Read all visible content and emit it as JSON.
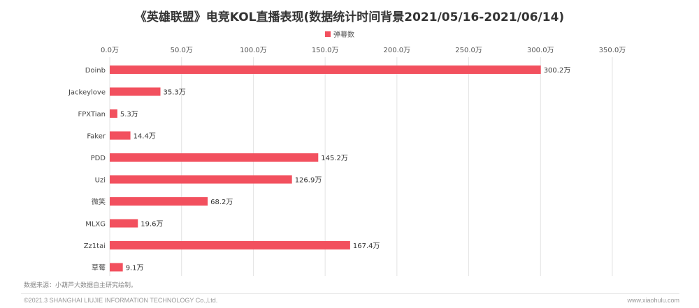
{
  "chart_data": {
    "type": "bar",
    "orientation": "horizontal",
    "title": "《英雄联盟》电竞KOL直播表现(数据统计时间背景2021/05/16-2021/06/14)",
    "legend": [
      "弹幕数"
    ],
    "legend_position": "top-center",
    "categories": [
      "Doinb",
      "Jackeylove",
      "FPXTian",
      "Faker",
      "PDD",
      "Uzi",
      "微笑",
      "MLXG",
      "Zz1tai",
      "草莓"
    ],
    "series": [
      {
        "name": "弹幕数",
        "values": [
          300.2,
          35.3,
          5.3,
          14.4,
          145.2,
          126.9,
          68.2,
          19.6,
          167.4,
          9.1
        ],
        "labels": [
          "300.2万",
          "35.3万",
          "5.3万",
          "14.4万",
          "145.2万",
          "126.9万",
          "68.2万",
          "19.6万",
          "167.4万",
          "9.1万"
        ]
      }
    ],
    "x_ticks": [
      "0.0万",
      "50.0万",
      "100.0万",
      "150.0万",
      "200.0万",
      "250.0万",
      "300.0万",
      "350.0万"
    ],
    "xlim": [
      0,
      350
    ],
    "x_axis_position": "top",
    "grid": true,
    "color": "#f2505e"
  },
  "source_note": "数据来源：小葫芦大数据自主研究绘制。",
  "footer": {
    "left": "©2021.3 SHANGHAI LIUJIE INFORMATION  TECHNOLOGY Co.,Ltd.",
    "right": "www.xiaohulu.com"
  }
}
